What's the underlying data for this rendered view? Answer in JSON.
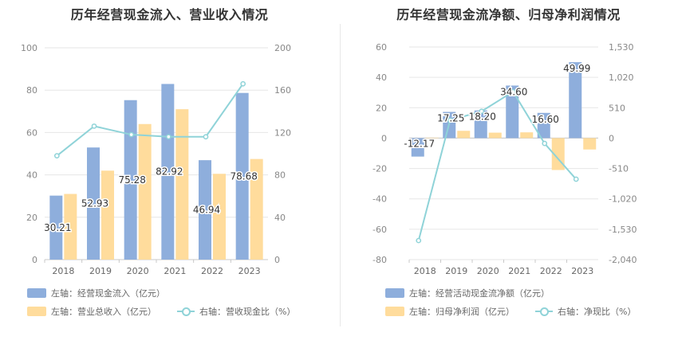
{
  "chart_data": [
    {
      "type": "bar+line",
      "title": "历年经营现金流入、营业收入情况",
      "categories": [
        "2018",
        "2019",
        "2020",
        "2021",
        "2022",
        "2023"
      ],
      "left_axis": {
        "ticks": [
          "0",
          "20",
          "40",
          "60",
          "80",
          "100"
        ],
        "ylim": [
          0,
          100
        ]
      },
      "right_axis": {
        "ticks": [
          "0",
          "40",
          "80",
          "120",
          "160",
          "200"
        ],
        "ylim": [
          0,
          200
        ]
      },
      "series": [
        {
          "name": "左轴：经营现金流入（亿元）",
          "axis": "left",
          "kind": "bar",
          "color": "#8eaedc",
          "values": [
            30.21,
            52.93,
            75.28,
            82.92,
            46.94,
            78.68
          ],
          "labels": [
            "30.21",
            "52.93",
            "75.28",
            "82.92",
            "46.94",
            "78.68"
          ]
        },
        {
          "name": "左轴：营业总收入（亿元）",
          "axis": "left",
          "kind": "bar",
          "color": "#ffdc9c",
          "values": [
            31,
            42,
            64,
            71,
            40.5,
            47.5
          ]
        },
        {
          "name": "右轴：营收现金比（%）",
          "axis": "right",
          "kind": "line",
          "color": "#8fd3d8",
          "values": [
            98,
            126,
            118,
            116,
            116,
            166
          ]
        }
      ]
    },
    {
      "type": "bar+line",
      "title": "历年经营现金流净额、归母净利润情况",
      "categories": [
        "2018",
        "2019",
        "2020",
        "2021",
        "2022",
        "2023"
      ],
      "left_axis": {
        "ticks": [
          "-80",
          "-60",
          "-40",
          "-20",
          "0",
          "20",
          "40",
          "60"
        ],
        "ylim": [
          -80,
          60
        ]
      },
      "right_axis": {
        "ticks": [
          "-2,040",
          "-1,530",
          "-1,020",
          "-510",
          "0",
          "510",
          "1,020",
          "1,530"
        ],
        "ylim": [
          -2040,
          1530
        ]
      },
      "series": [
        {
          "name": "左轴：经营活动现金流净额（亿元）",
          "axis": "left",
          "kind": "bar",
          "color": "#8eaedc",
          "values": [
            -12.17,
            17.25,
            18.2,
            34.6,
            16.6,
            49.99
          ],
          "labels": [
            "-12.17",
            "17.25",
            "18.20",
            "34.60",
            "16.60",
            "49.99"
          ]
        },
        {
          "name": "左轴：归母净利润（亿元）",
          "axis": "left",
          "kind": "bar",
          "color": "#ffdc9c",
          "values": [
            0.3,
            4.8,
            3.6,
            3.8,
            -21,
            -7.5
          ]
        },
        {
          "name": "右轴：净现比（%）",
          "axis": "right",
          "kind": "line",
          "color": "#8fd3d8",
          "values": [
            -1720,
            300,
            450,
            780,
            -90,
            -690
          ]
        }
      ]
    }
  ]
}
